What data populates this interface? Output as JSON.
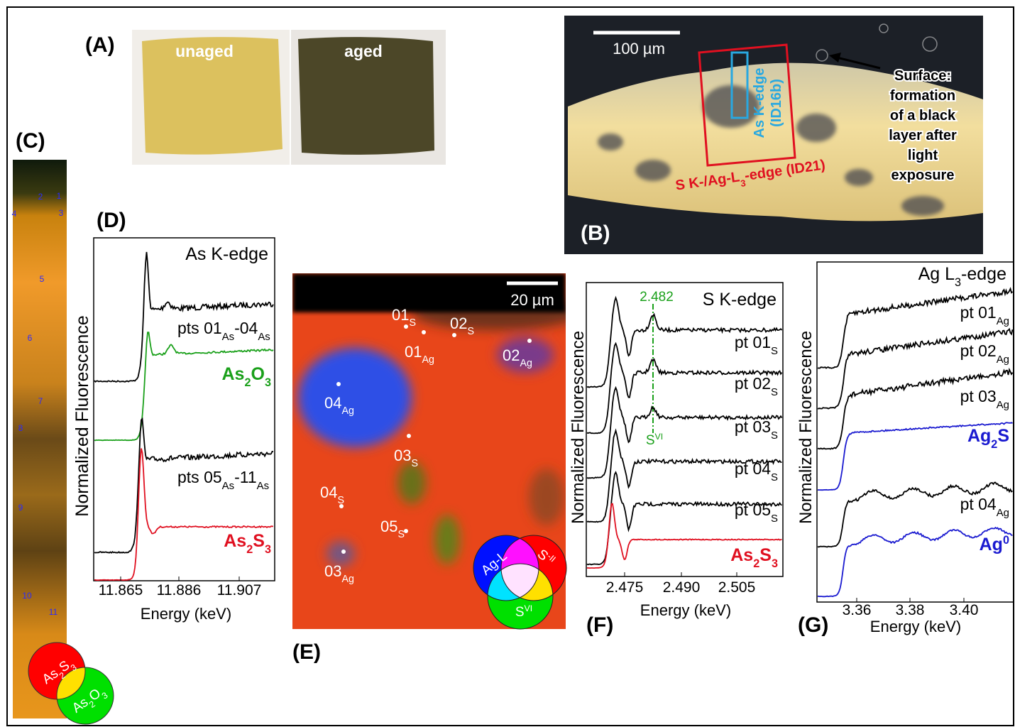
{
  "panel_labels": {
    "A": "(A)",
    "B": "(B)",
    "C": "(C)",
    "D": "(D)",
    "E": "(E)",
    "F": "(F)",
    "G": "(G)"
  },
  "A": {
    "unaged": "unaged",
    "aged": "aged"
  },
  "B": {
    "scale": "100 µm",
    "as_edge": "As K-edge",
    "as_beamline": "(ID16b)",
    "s_edge": [
      "S K-/Ag-L",
      "3",
      "-edge (ID21)"
    ],
    "note": [
      "Surface:",
      "formation",
      "of a black",
      "layer after",
      "light",
      "exposure"
    ]
  },
  "C": {
    "points": [
      "1",
      "2",
      "3",
      "4",
      "5",
      "6",
      "7",
      "8",
      "9",
      "10",
      "11"
    ],
    "venn": [
      [
        "As",
        "2",
        "S",
        "3"
      ],
      [
        "As",
        "2",
        "O",
        "3"
      ]
    ]
  },
  "D": {
    "title": "As K-edge",
    "y_label": "Normalized Fluorescence",
    "x_label": "Energy (keV)",
    "x_ticks": [
      "11.865",
      "11.886",
      "11.907"
    ],
    "labels": [
      [
        "pts 01",
        "As",
        "-04",
        "As"
      ],
      [
        "As",
        "2",
        "O",
        "3"
      ],
      [
        "pts 05",
        "As",
        "-11",
        "As"
      ],
      [
        "As",
        "2",
        "S",
        "3"
      ]
    ]
  },
  "E": {
    "scale": "20 µm",
    "points": [
      [
        "01",
        "S"
      ],
      [
        "02",
        "S"
      ],
      [
        "01",
        "Ag"
      ],
      [
        "02",
        "Ag"
      ],
      [
        "04",
        "Ag"
      ],
      [
        "03",
        "S"
      ],
      [
        "04",
        "S"
      ],
      [
        "05",
        "S"
      ],
      [
        "03",
        "Ag"
      ]
    ],
    "venn": [
      [
        "Ag-L"
      ],
      [
        "S",
        "-II"
      ],
      [
        "S",
        "VI"
      ]
    ]
  },
  "F": {
    "title": "S K-edge",
    "marker": "2.482",
    "marker_label": [
      "S",
      "VI"
    ],
    "y_label": "Normalized Fluorescence",
    "x_label": "Energy (keV)",
    "x_ticks": [
      "2.475",
      "2.490",
      "2.505"
    ],
    "labels": [
      [
        "pt 01",
        "S"
      ],
      [
        "pt 02",
        "S"
      ],
      [
        "pt 03",
        "S"
      ],
      [
        "pt 04",
        "S"
      ],
      [
        "pt 05",
        "S"
      ],
      [
        "As",
        "2",
        "S",
        "3"
      ]
    ]
  },
  "G": {
    "title": [
      "Ag L",
      "3",
      "-edge"
    ],
    "y_label": "Normalized Fluorescence",
    "x_label": "Energy (keV)",
    "x_ticks": [
      "3.36",
      "3.38",
      "3.40"
    ],
    "labels": [
      [
        "pt 01",
        "Ag"
      ],
      [
        "pt 02",
        "Ag"
      ],
      [
        "pt 03",
        "Ag"
      ],
      [
        "Ag",
        "2",
        "S"
      ],
      [
        "pt 04",
        "Ag"
      ],
      [
        "Ag",
        "0"
      ]
    ]
  }
}
